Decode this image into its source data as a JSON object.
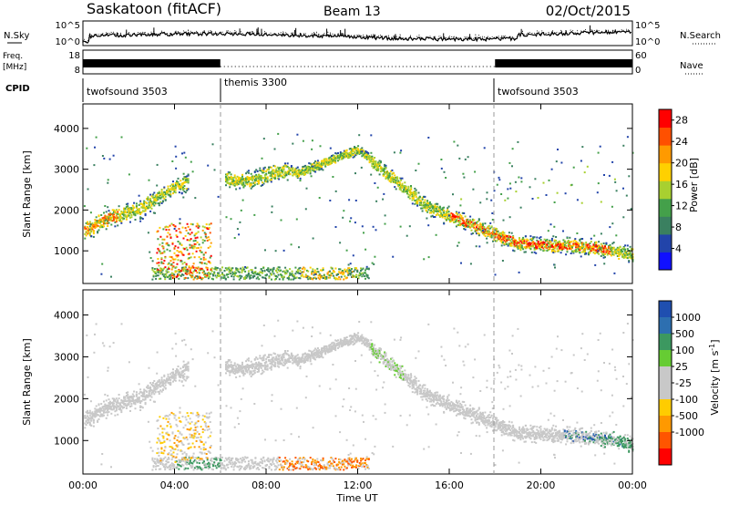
{
  "header": {
    "station": "Saskatoon (fitACF)",
    "beam": "Beam 13",
    "date": "02/Oct/2015"
  },
  "noise_panel": {
    "left_label": "N.Sky",
    "left_ticks": [
      "10^5",
      "10^0"
    ],
    "right_label": "N.Search",
    "right_ticks": [
      "10^5",
      "10^0"
    ]
  },
  "freq_panel": {
    "left_label_top": "Freq.",
    "left_label_bottom": "[MHz]",
    "left_ticks": [
      "18",
      "8"
    ],
    "right_label": "Nave",
    "right_ticks": [
      "60",
      "0"
    ]
  },
  "cpid": {
    "label": "CPID",
    "segments": [
      {
        "name": "twofsound 3503",
        "start_hour": 0
      },
      {
        "name": "themis 3300",
        "start_hour": 6
      },
      {
        "name": "twofsound 3503",
        "start_hour": 18
      }
    ]
  },
  "colors": {
    "power_scale": [
      "#1010ff",
      "#2244aa",
      "#3a8060",
      "#44a04a",
      "#a8d030",
      "#ffd000",
      "#ff9a00",
      "#ff5000",
      "#ff0000"
    ],
    "velocity_scale": [
      "#1f4fb0",
      "#2d6fb0",
      "#3c9860",
      "#66cc33",
      "#c8c8c8",
      "#c8c8c8",
      "#ffcc00",
      "#ff9900",
      "#ff5500",
      "#ff0000"
    ]
  },
  "chart_data": [
    {
      "type": "heatmap",
      "title": "Power",
      "xlabel": "",
      "ylabel": "Slant Range [km]",
      "xlim": [
        0,
        24
      ],
      "ylim": [
        200,
        4600
      ],
      "x_ticks": [
        "00:00",
        "04:00",
        "08:00",
        "12:00",
        "16:00",
        "20:00",
        "00:00"
      ],
      "y_ticks": [
        1000,
        2000,
        3000,
        4000
      ],
      "colorbar": {
        "label": "Power [dB]",
        "ticks": [
          4,
          8,
          12,
          16,
          20,
          24,
          28
        ],
        "range": [
          0,
          30
        ]
      }
    },
    {
      "type": "heatmap",
      "title": "Velocity",
      "xlabel": "Time UT",
      "ylabel": "Slant Range [km]",
      "xlim": [
        0,
        24
      ],
      "ylim": [
        200,
        4600
      ],
      "x_ticks": [
        "00:00",
        "04:00",
        "08:00",
        "12:00",
        "16:00",
        "20:00",
        "00:00"
      ],
      "y_ticks": [
        1000,
        2000,
        3000,
        4000
      ],
      "colorbar": {
        "label": "Velocity [m s^-1]",
        "ticks": [
          "1000",
          "500",
          "100",
          "25",
          "-25",
          "-100",
          "-500",
          "-1000"
        ]
      }
    }
  ]
}
